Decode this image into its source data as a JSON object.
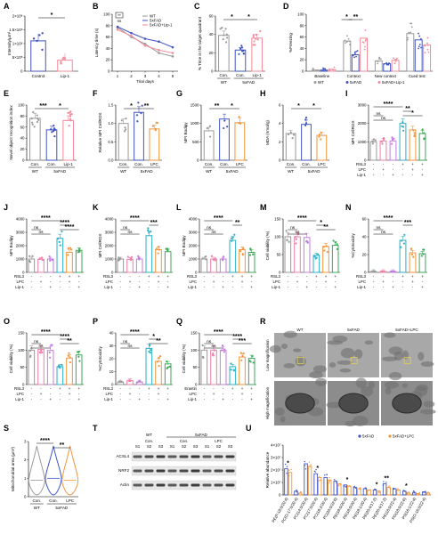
{
  "colors": {
    "wt": "#9a9a9a",
    "fad": "#4055c4",
    "trt": "#f28b9b",
    "lip": "#3db36b",
    "lpc": "#f2963c",
    "ras": "#f27fa8",
    "teal": "#2ab0c8",
    "lip2": "#3aa858"
  },
  "chart_data": [
    {
      "id": "A",
      "type": "bar",
      "categories": [
        "Control",
        "Lip-1"
      ],
      "values": [
        1100000.0,
        400000.0
      ],
      "ylabel": "Intensity/μm²",
      "yticks": [
        "0",
        "5×10⁵",
        "1×10⁶",
        "1.5×10⁶",
        "2×10⁶"
      ],
      "ylim": [
        0,
        2000000
      ],
      "sig": [
        "*"
      ]
    },
    {
      "id": "B",
      "type": "line",
      "x": [
        1,
        2,
        3,
        4,
        5
      ],
      "xlabel": "Trial days",
      "ylabel": "Latency time (s)",
      "ylim": [
        0,
        100
      ],
      "yticks": [
        "0",
        "20",
        "40",
        "60",
        "80",
        "100"
      ],
      "series": [
        {
          "name": "WT",
          "values": [
            77,
            60,
            48,
            32,
            26
          ]
        },
        {
          "name": "5xFAD",
          "values": [
            78,
            67,
            57,
            52,
            42
          ]
        },
        {
          "name": "5xFAD+Lip-1",
          "values": [
            73,
            62,
            45,
            37,
            32
          ]
        }
      ],
      "sig": [
        "**",
        "ns"
      ]
    },
    {
      "id": "C",
      "type": "bar",
      "categories": [
        "Con.",
        "Con.",
        "Lip-1"
      ],
      "values": [
        39,
        23,
        36
      ],
      "ylabel": "% Time in the target quadrant",
      "ylim": [
        0,
        60
      ],
      "yticks": [
        "0",
        "20",
        "40",
        "60"
      ],
      "groups": [
        "WT",
        "5xFAD"
      ],
      "sig": [
        "*",
        "*"
      ]
    },
    {
      "id": "D",
      "type": "bar",
      "categories": [
        "Baseline",
        "Context",
        "New context",
        "Cued test"
      ],
      "ylabel": "%Freezing",
      "ylim": [
        0,
        100
      ],
      "yticks": [
        "0",
        "20",
        "40",
        "60",
        "80",
        "100"
      ],
      "series": [
        {
          "name": "WT",
          "values": [
            2,
            53,
            18,
            66
          ]
        },
        {
          "name": "5xFAD",
          "values": [
            2,
            29,
            13,
            55
          ]
        },
        {
          "name": "5xFAD+Lip-1",
          "values": [
            3,
            58,
            19,
            46
          ]
        }
      ],
      "sig": [
        "*",
        "**"
      ]
    },
    {
      "id": "E",
      "type": "bar",
      "categories": [
        "Con.",
        "Con.",
        "Lip-1"
      ],
      "values": [
        76,
        55,
        72
      ],
      "ylabel": "Novel object recognition index",
      "ylim": [
        0,
        100
      ],
      "yticks": [
        "0",
        "20",
        "40",
        "60",
        "80",
        "100"
      ],
      "groups": [
        "WT",
        "5xFAD"
      ],
      "sig": [
        "***",
        "*"
      ]
    },
    {
      "id": "F",
      "type": "bar",
      "categories": [
        "Con.",
        "Con.",
        "LPC"
      ],
      "values": [
        1.0,
        1.3,
        0.85
      ],
      "ylabel": "Relative MFI CellROX",
      "ylim": [
        0,
        1.5
      ],
      "yticks": [
        "0.0",
        "0.5",
        "1.0",
        "1.5"
      ],
      "groups": [
        "WT",
        "5xFAD"
      ],
      "sig": [
        "*",
        "**"
      ]
    },
    {
      "id": "G",
      "type": "bar",
      "categories": [
        "Con.",
        "Con.",
        "LPC"
      ],
      "values": [
        800,
        1120,
        1020
      ],
      "ylabel": "MFI Bodipy",
      "ylim": [
        0,
        1500
      ],
      "yticks": [
        "0",
        "500",
        "1000",
        "1500"
      ],
      "groups": [
        "WT",
        "5xFAD"
      ],
      "sig": [
        "**",
        "*"
      ]
    },
    {
      "id": "H",
      "type": "bar",
      "categories": [
        "Con.",
        "Con.",
        "LPC"
      ],
      "values": [
        2.9,
        3.9,
        2.7
      ],
      "ylabel": "MDA (nmol/g)",
      "ylim": [
        0,
        6
      ],
      "yticks": [
        "0",
        "2",
        "4",
        "6"
      ],
      "groups": [
        "WT",
        "5xFAD"
      ],
      "sig": [
        "*",
        "*"
      ]
    },
    {
      "id": "I",
      "type": "bar",
      "ylabel": "MFI CellROX",
      "ylim": [
        0,
        3000
      ],
      "yticks": [
        "0",
        "1000",
        "2000",
        "3000"
      ],
      "values": [
        1000,
        1050,
        1050,
        2000,
        1650,
        1450
      ],
      "sig": [
        "****",
        "**",
        "ns",
        "ns",
        "*"
      ]
    },
    {
      "id": "J",
      "type": "bar",
      "ylabel": "MFI Bodipy",
      "ylim": [
        0,
        4000
      ],
      "yticks": [
        "0",
        "1000",
        "2000",
        "3000",
        "4000"
      ],
      "values": [
        1000,
        980,
        1000,
        2550,
        1500,
        1650
      ],
      "sig": [
        "****",
        "****",
        "ns",
        "ns",
        "****"
      ]
    },
    {
      "id": "K",
      "type": "bar",
      "ylabel": "MFI CellROX",
      "ylim": [
        0,
        4000
      ],
      "yticks": [
        "0",
        "1000",
        "2000",
        "3000",
        "4000"
      ],
      "values": [
        1000,
        980,
        1000,
        2750,
        1700,
        1550
      ],
      "sig": [
        "****",
        "***",
        "ns",
        "ns"
      ]
    },
    {
      "id": "L",
      "type": "bar",
      "ylabel": "MFI Bodipy",
      "ylim": [
        0,
        4000
      ],
      "yticks": [
        "0",
        "1000",
        "2000",
        "3000",
        "4000"
      ],
      "values": [
        1000,
        1000,
        1000,
        2400,
        1700,
        1500
      ],
      "sig": [
        "****",
        "**",
        "ns",
        "ns"
      ]
    },
    {
      "id": "M",
      "type": "bar",
      "ylabel": "Cell viability (%)",
      "ylim": [
        0,
        150
      ],
      "yticks": [
        "0",
        "50",
        "100",
        "150"
      ],
      "values": [
        100,
        100,
        98,
        48,
        73,
        76
      ],
      "sig": [
        "****",
        "*",
        "ns",
        "ns",
        "**"
      ]
    },
    {
      "id": "N",
      "type": "bar",
      "ylabel": "%Cytotoxicity",
      "ylim": [
        0,
        60
      ],
      "yticks": [
        "0",
        "20",
        "40",
        "60"
      ],
      "values": [
        1,
        1,
        1,
        36,
        22,
        21
      ],
      "sig": [
        "****",
        "***",
        "ns",
        "ns"
      ]
    },
    {
      "id": "O",
      "type": "bar",
      "ylabel": "Cell viability (%)",
      "ylim": [
        0,
        150
      ],
      "yticks": [
        "0",
        "50",
        "100",
        "150"
      ],
      "values": [
        100,
        102,
        99,
        52,
        77,
        86
      ],
      "sig": [
        "****",
        "****",
        "ns",
        "ns",
        "**"
      ]
    },
    {
      "id": "P",
      "type": "bar",
      "ylabel": "%Cytotoxicity",
      "ylim": [
        0,
        40
      ],
      "yticks": [
        "0",
        "10",
        "20",
        "30",
        "40"
      ],
      "values": [
        2,
        3,
        2,
        28,
        18,
        16
      ],
      "sig": [
        "****",
        "*",
        "ns",
        "ns",
        "**"
      ]
    },
    {
      "id": "Q",
      "type": "bar",
      "ylabel": "Cell viability (%)",
      "ylim": [
        0,
        150
      ],
      "yticks": [
        "0",
        "50",
        "100",
        "150"
      ],
      "values": [
        100,
        100,
        99,
        52,
        80,
        76
      ],
      "sig": [
        "****",
        "****",
        "ns",
        "ns",
        "***"
      ]
    },
    {
      "id": "S",
      "type": "violin",
      "categories": [
        "Con.",
        "Con.",
        "LPC"
      ],
      "ylabel": "Mitochondrial area (μm²)",
      "ylim": [
        0,
        3
      ],
      "yticks": [
        "0",
        "1",
        "2",
        "3"
      ],
      "groups": [
        "WT",
        "5xFAD"
      ],
      "medians": [
        0.9,
        1.0,
        0.9
      ],
      "sig": [
        "****",
        "**"
      ]
    },
    {
      "id": "U",
      "type": "bar",
      "ylabel": "Relative abundance",
      "ylim": [
        0,
        40000000
      ],
      "yticks": [
        "0",
        "1×10⁷",
        "2×10⁷",
        "3×10⁷",
        "4×10⁷"
      ],
      "categories": [
        "PE(P-18:0/20:4)",
        "PC(O-17:0/20:4)",
        "PC(14:0/20:4)",
        "PC(17:0/20:4)",
        "PC(18:2/20:4)",
        "PC(20:0/22:6)",
        "PE(18:0/20:4)",
        "PE(18:0/20:4)",
        "PE(18:1/20:4)",
        "PE(20:4/17:2)",
        "PE(20:4/17:2)",
        "PE(18:0/22:4)",
        "PG(18:0/22:6)",
        "PS(16:1/22:4)",
        "PS(O-16:0/22:4)"
      ],
      "series": [
        {
          "name": "5xFAD",
          "values": [
            21000000,
            3000000,
            25000000,
            17000000,
            14000000,
            11000000,
            8000000,
            6000000,
            5000000,
            4000000,
            9000000,
            5000000,
            3000000,
            2000000,
            2500000
          ]
        },
        {
          "name": "5xFAD+LPC",
          "values": [
            18000000,
            1500000,
            23000000,
            14000000,
            12000000,
            9000000,
            7000000,
            5000000,
            4000000,
            3000000,
            6000000,
            4000000,
            1500000,
            1000000,
            1500000
          ]
        }
      ],
      "sig": [
        "*",
        "**"
      ]
    }
  ],
  "labels": {
    "panels": [
      "A",
      "B",
      "C",
      "D",
      "E",
      "F",
      "G",
      "H",
      "I",
      "J",
      "K",
      "L",
      "M",
      "N",
      "O",
      "P",
      "Q",
      "R",
      "S",
      "T",
      "U"
    ],
    "wt": "WT",
    "fad": "5xFAD",
    "fadlpc": "5xFAD+LPC",
    "con": "Con.",
    "lpc": "LPC",
    "lip": "Lip-1",
    "control": "Control",
    "rsl3": "RSL3",
    "erastin": "Erastin",
    "lip1": "Lip-1",
    "ticks_pm": [
      "-",
      "+"
    ],
    "r_low": "Low magnification",
    "r_high": "High magnification",
    "t_rows": [
      "ACSL4",
      "NRF2",
      "Actin"
    ],
    "t_samples": [
      "S1",
      "S2",
      "S3"
    ],
    "d_legend": [
      "WT",
      "5xFAD",
      "5xFAD+Lip-1"
    ],
    "sig_ns": "ns",
    "sig_star": "*"
  }
}
